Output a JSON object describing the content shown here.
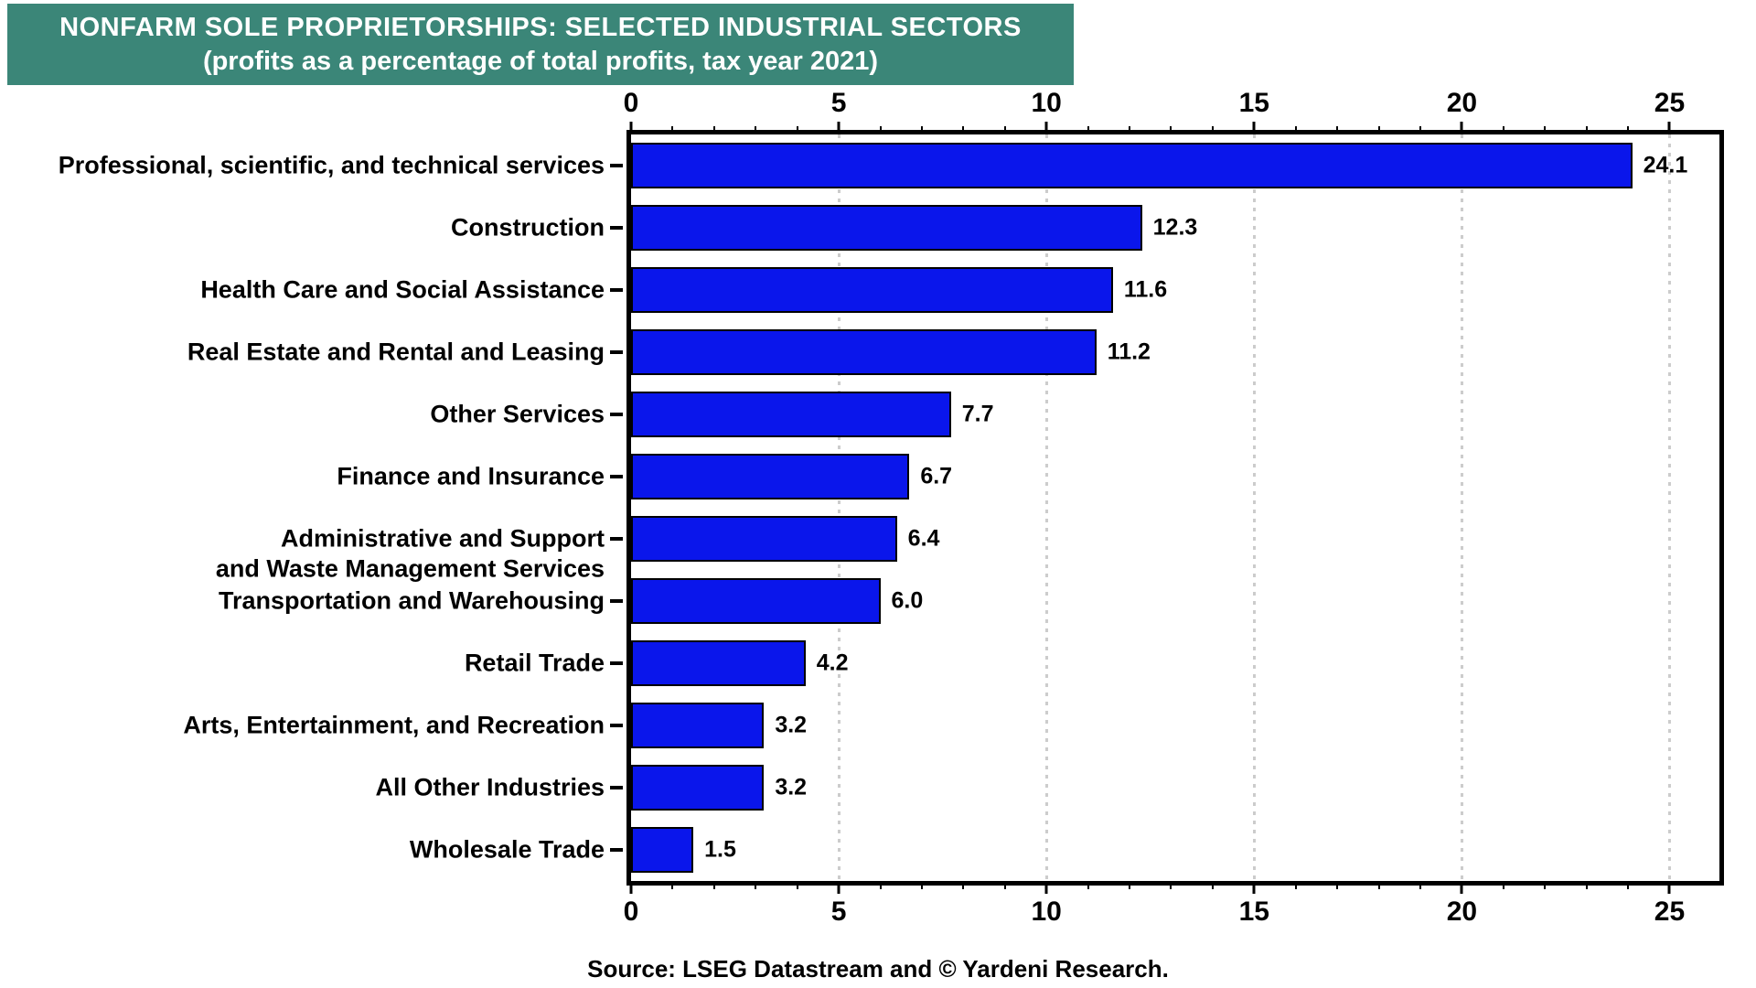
{
  "banner": {
    "title": "NONFARM SOLE PROPRIETORSHIPS: SELECTED INDUSTRIAL SECTORS",
    "subtitle": "(profits as a percentage of total profits, tax year 2021)",
    "bg_color": "#3b8678",
    "text_color": "#ffffff"
  },
  "chart_data": {
    "type": "bar",
    "orientation": "horizontal",
    "title": "NONFARM SOLE PROPRIETORSHIPS: SELECTED INDUSTRIAL SECTORS",
    "subtitle": "(profits as a percentage of total profits, tax year 2021)",
    "categories": [
      "Professional, scientific, and technical services",
      "Construction",
      "Health Care and Social Assistance",
      "Real Estate and Rental and Leasing",
      "Other Services",
      "Finance and Insurance",
      "Administrative and Support\nand Waste Management Services",
      "Transportation and Warehousing",
      "Retail Trade",
      "Arts, Entertainment, and Recreation",
      "All Other Industries",
      "Wholesale Trade"
    ],
    "values": [
      24.1,
      12.3,
      11.6,
      11.2,
      7.7,
      6.7,
      6.4,
      6.0,
      4.2,
      3.2,
      3.2,
      1.5
    ],
    "value_labels": [
      "24.1",
      "12.3",
      "11.6",
      "11.2",
      "7.7",
      "6.7",
      "6.4",
      "6.0",
      "4.2",
      "3.2",
      "3.2",
      "1.5"
    ],
    "xlabel": "",
    "ylabel": "",
    "xlim": [
      0,
      26.2
    ],
    "x_major_ticks": [
      0,
      5,
      10,
      15,
      20,
      25
    ],
    "x_minor_tick_step": 1,
    "grid": "vertical dotted gridlines at major ticks",
    "legend": "none",
    "bar_color": "#0a16eb",
    "bar_outline_color": "#000000",
    "grid_color": "#cccccc"
  },
  "source": "Source: LSEG Datastream and © Yardeni Research."
}
